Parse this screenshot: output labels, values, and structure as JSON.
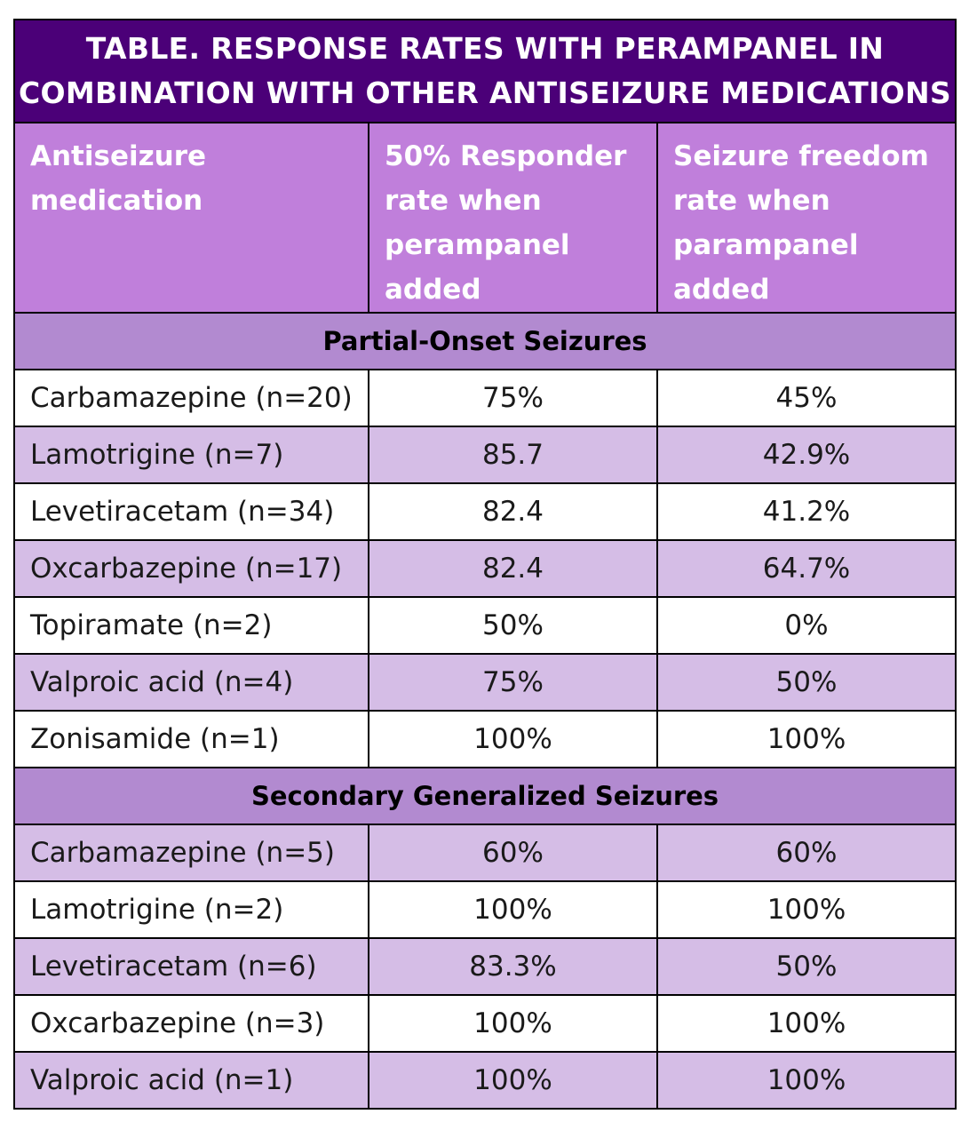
{
  "title": {
    "line1": "TABLE. RESPONSE RATES WITH PERAMPANEL IN",
    "line2": "COMBINATION WITH OTHER ANTISEIZURE MEDICATIONS"
  },
  "headers": {
    "col1": [
      "Antiseizure",
      "medication"
    ],
    "col2": [
      "50% Responder",
      "rate when",
      "perampanel added"
    ],
    "col3": [
      "Seizure freedom",
      "rate when",
      "parampanel",
      "added"
    ]
  },
  "sections": [
    {
      "label": "Partial-Onset Seizures",
      "rows": [
        {
          "medication": "Carbamazepine (n=20)",
          "responder": "75%",
          "freedom": "45%"
        },
        {
          "medication": "Lamotrigine (n=7)",
          "responder": "85.7",
          "freedom": "42.9%"
        },
        {
          "medication": "Levetiracetam (n=34)",
          "responder": "82.4",
          "freedom": "41.2%"
        },
        {
          "medication": "Oxcarbazepine (n=17)",
          "responder": "82.4",
          "freedom": "64.7%"
        },
        {
          "medication": "Topiramate (n=2)",
          "responder": "50%",
          "freedom": "0%"
        },
        {
          "medication": "Valproic acid (n=4)",
          "responder": "75%",
          "freedom": "50%"
        },
        {
          "medication": "Zonisamide (n=1)",
          "responder": "100%",
          "freedom": "100%"
        }
      ]
    },
    {
      "label": "Secondary Generalized Seizures",
      "rows": [
        {
          "medication": "Carbamazepine (n=5)",
          "responder": "60%",
          "freedom": "60%"
        },
        {
          "medication": "Lamotrigine (n=2)",
          "responder": "100%",
          "freedom": "100%"
        },
        {
          "medication": "Levetiracetam (n=6)",
          "responder": "83.3%",
          "freedom": "50%"
        },
        {
          "medication": "Oxcarbazepine (n=3)",
          "responder": "100%",
          "freedom": "100%"
        },
        {
          "medication": "Valproic acid (n=1)",
          "responder": "100%",
          "freedom": "100%"
        }
      ]
    }
  ],
  "colors": {
    "title_bg": "#4b0078",
    "header_bg": "#c07fdb",
    "section_bg": "#b28ad0",
    "row_alt_bg": "#d5bde6"
  }
}
